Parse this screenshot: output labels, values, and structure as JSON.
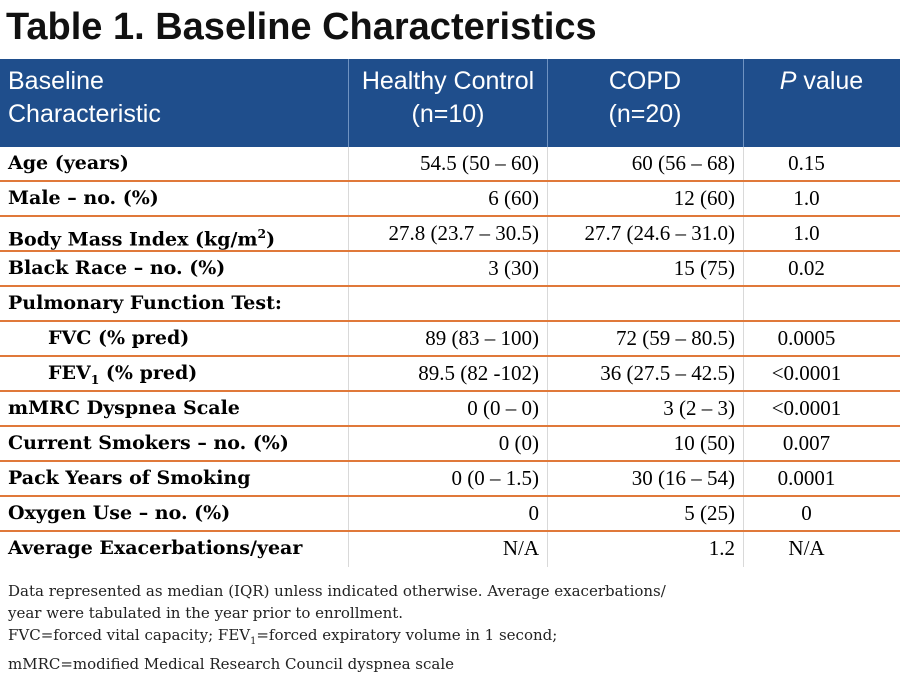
{
  "title": "Table 1. Baseline Characteristics",
  "header": {
    "col0_line1": "Baseline",
    "col0_line2": "Characteristic",
    "col1_line1": "Healthy Control",
    "col1_line2": "(n=10)",
    "col2_line1": "COPD",
    "col2_line2": "(n=20)",
    "col3_italic": "P",
    "col3_rest": " value"
  },
  "rows": [
    {
      "label": "Age (years)",
      "healthy": "54.5 (50 – 60)",
      "copd": "60 (56 – 68)",
      "p": "0.15"
    },
    {
      "label": "Male – no. (%)",
      "healthy": "6 (60)",
      "copd": "12 (60)",
      "p": "1.0"
    },
    {
      "label": "Body Mass Index (kg/m",
      "label_sup": "2",
      "label_after": ")",
      "healthy": "27.8 (23.7 – 30.5)",
      "copd": "27.7 (24.6 – 31.0)",
      "p": "1.0"
    },
    {
      "label": "Black Race – no. (%)",
      "healthy": "3 (30)",
      "copd": "15 (75)",
      "p": "0.02"
    },
    {
      "label": "Pulmonary Function Test:",
      "healthy": "",
      "copd": "",
      "p": ""
    },
    {
      "label": "FVC (% pred)",
      "healthy": "89 (83 – 100)",
      "copd": "72 (59 – 80.5)",
      "p": "0.0005"
    },
    {
      "label": "FEV",
      "label_sub": "1",
      "label_after": " (% pred)",
      "healthy": "89.5 (82 -102)",
      "copd": "36 (27.5 – 42.5)",
      "p": "<0.0001"
    },
    {
      "label": "mMRC Dyspnea Scale",
      "healthy": "0 (0 – 0)",
      "copd": "3 (2 – 3)",
      "p": "<0.0001"
    },
    {
      "label": "Current Smokers – no. (%)",
      "healthy": "0 (0)",
      "copd": "10 (50)",
      "p": "0.007"
    },
    {
      "label": "Pack Years of Smoking",
      "healthy": "0 (0 – 1.5)",
      "copd": "30 (16 – 54)",
      "p": "0.0001"
    },
    {
      "label": "Oxygen Use – no. (%)",
      "healthy": "0",
      "copd": "5 (25)",
      "p": "0"
    },
    {
      "label": "Average Exacerbations/year",
      "healthy": "N/A",
      "copd": "1.2",
      "p": "N/A"
    }
  ],
  "footnote": {
    "line1": "Data represented as median (IQR) unless indicated otherwise.  Average exacerbations/",
    "line2": "year were tabulated in the year prior to enrollment.",
    "line3_a": "FVC=forced vital capacity; FEV",
    "line3_sub": "1",
    "line3_b": "=forced expiratory volume in 1 second;",
    "line4": "mMRC=modified Medical Research Council dyspnea scale"
  },
  "colors": {
    "header_bg": "#1f4e8c",
    "row_rule": "#e0793a"
  }
}
